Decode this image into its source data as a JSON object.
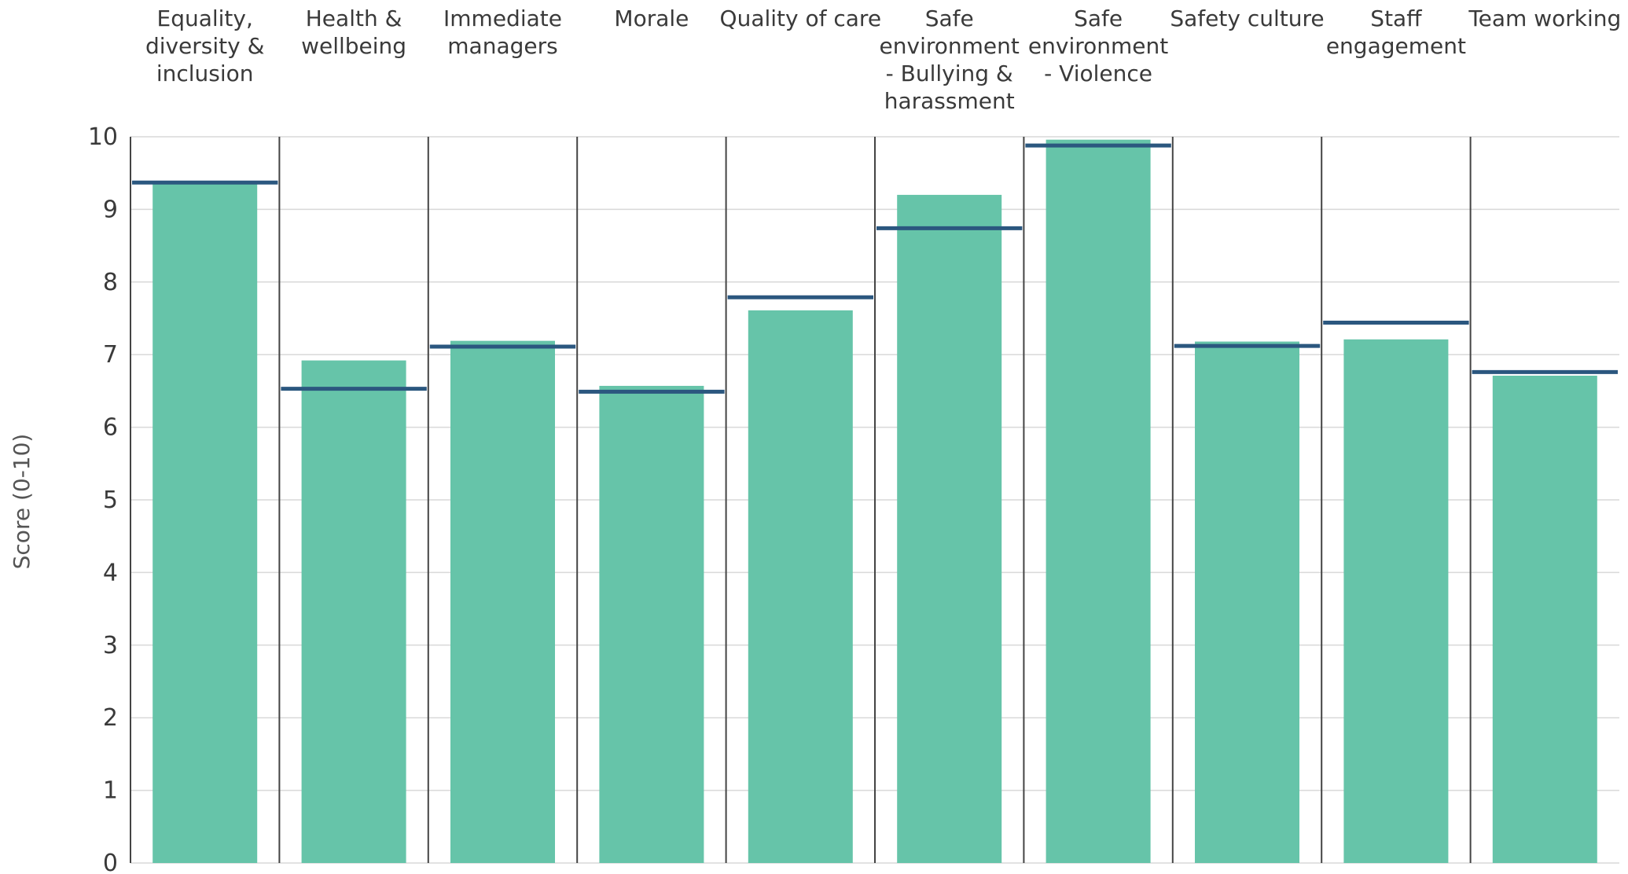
{
  "chart_data": {
    "type": "bar",
    "categories": [
      "Equality, diversity & inclusion",
      "Health & wellbeing",
      "Immediate managers",
      "Morale",
      "Quality of care",
      "Safe environment - Bullying & harassment",
      "Safe environment - Violence",
      "Safety culture",
      "Staff engagement",
      "Team working"
    ],
    "category_label_lines": [
      [
        "Equality,",
        "diversity &",
        "inclusion"
      ],
      [
        "Health &",
        "wellbeing"
      ],
      [
        "Immediate",
        "managers"
      ],
      [
        "Morale"
      ],
      [
        "Quality of care"
      ],
      [
        "Safe",
        "environment",
        "- Bullying &",
        "harassment"
      ],
      [
        "Safe",
        "environment",
        "- Violence"
      ],
      [
        "Safety culture"
      ],
      [
        "Staff",
        "engagement"
      ],
      [
        "Team working"
      ]
    ],
    "series": [
      {
        "values": [
          9.35,
          6.92,
          7.19,
          6.57,
          7.61,
          9.2,
          9.96,
          7.18,
          7.21,
          6.71
        ],
        "style": "bar"
      },
      {
        "values": [
          9.37,
          6.53,
          7.11,
          6.49,
          7.79,
          8.74,
          9.88,
          7.12,
          7.44,
          6.76
        ],
        "style": "marker-line"
      }
    ],
    "title": "",
    "xlabel": "",
    "ylabel": "Score (0-10)",
    "ylim": [
      0,
      10
    ],
    "yticks": [
      "0",
      "1",
      "2",
      "3",
      "4",
      "5",
      "6",
      "7",
      "8",
      "9",
      "10"
    ],
    "grid": true,
    "colors": {
      "bar": "#66c4a9",
      "marker": "#2b577f",
      "grid": "#d9d9d9",
      "divider": "#444444"
    }
  }
}
